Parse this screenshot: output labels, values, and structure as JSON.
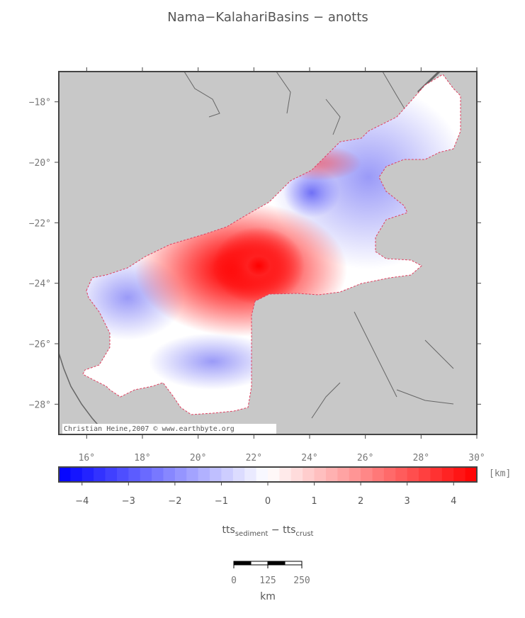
{
  "title": "Nama−KalahariBasins − anotts",
  "map": {
    "lonlim": [
      15,
      30
    ],
    "latlim": [
      -29,
      -17
    ],
    "lon_ticks": [
      {
        "value": 16,
        "label": "16°"
      },
      {
        "value": 18,
        "label": "18°"
      },
      {
        "value": 20,
        "label": "20°"
      },
      {
        "value": 22,
        "label": "22°"
      },
      {
        "value": 24,
        "label": "24°"
      },
      {
        "value": 26,
        "label": "26°"
      },
      {
        "value": 28,
        "label": "28°"
      },
      {
        "value": 30,
        "label": "30°"
      }
    ],
    "lat_ticks": [
      {
        "value": -18,
        "label": "−18°"
      },
      {
        "value": -20,
        "label": "−20°"
      },
      {
        "value": -22,
        "label": "−22°"
      },
      {
        "value": -24,
        "label": "−24°"
      },
      {
        "value": -26,
        "label": "−26°"
      },
      {
        "value": -28,
        "label": "−28°"
      }
    ],
    "credit": "Christian Heine,2007 © www.earthbyte.org"
  },
  "colorbar": {
    "lim": [
      -4.5,
      4.5
    ],
    "colors": [
      "#0000ff",
      "#ffffff",
      "#ff0000"
    ],
    "ticks": [
      {
        "value": -4,
        "label": "−4"
      },
      {
        "value": -3,
        "label": "−3"
      },
      {
        "value": -2,
        "label": "−2"
      },
      {
        "value": -1,
        "label": "−1"
      },
      0,
      1,
      2,
      3,
      4
    ],
    "unit": "[km]",
    "label": {
      "main1": "tts",
      "sub1": "sediment",
      "main2": " − tts",
      "sub2": "crust"
    }
  },
  "scalebar": {
    "ticks": [
      0,
      125,
      250
    ],
    "unit": "km"
  }
}
